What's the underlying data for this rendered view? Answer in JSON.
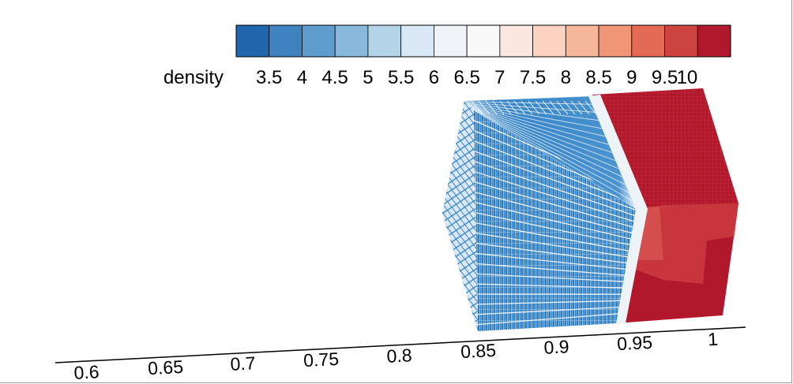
{
  "colorbar": {
    "title": "density",
    "tick_labels": [
      "3.5",
      "4",
      "4.5",
      "5",
      "5.5",
      "6",
      "6.5",
      "7",
      "7.5",
      "8",
      "8.5",
      "9",
      "9.5",
      "10"
    ],
    "colors": [
      "#2166ac",
      "#3f82c0",
      "#5e9dcd",
      "#86b9db",
      "#b4d4e8",
      "#d9e8f2",
      "#eef4f8",
      "#f8f8f8",
      "#fae8e0",
      "#fbd3c0",
      "#f5b699",
      "#f09676",
      "#e36b55",
      "#cc4340",
      "#b2182b"
    ]
  },
  "axis": {
    "tick_labels": [
      "0.6",
      "0.65",
      "0.7",
      "0.75",
      "0.8",
      "0.85",
      "0.9",
      "0.95",
      "1"
    ]
  },
  "cube": {
    "low_density_color": "#2e7fc4",
    "high_density_color": "#b2182b",
    "interface_color": "#d9e8f2"
  }
}
